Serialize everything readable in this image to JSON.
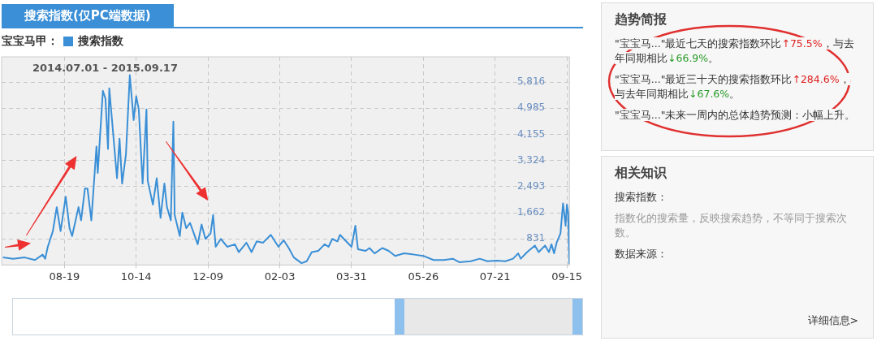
{
  "chart_data": [
    {
      "type": "line",
      "title": "搜索指数(仅PC端数据)",
      "subtitle": "2014.07.01 - 2015.09.17",
      "legend_title": "宝宝马甲：",
      "legend": "top left",
      "grid": true,
      "line_style": "solid",
      "marker": "none",
      "xlim": [
        "2014-07-01",
        "2015-09-17"
      ],
      "xticks": [
        {
          "value": "2014-08-19",
          "label": "08-19"
        },
        {
          "value": "2014-10-14",
          "label": "10-14"
        },
        {
          "value": "2014-12-09",
          "label": "12-09"
        },
        {
          "value": "2015-02-03",
          "label": "02-03"
        },
        {
          "value": "2015-03-31",
          "label": "03-31"
        },
        {
          "value": "2015-05-26",
          "label": "05-26"
        },
        {
          "value": "2015-07-21",
          "label": "07-21"
        },
        {
          "value": "2015-09-15",
          "label": "09-15"
        }
      ],
      "ylim": [
        0,
        6620
      ],
      "yticks": [
        {
          "value": 0,
          "label": null
        },
        {
          "value": 831,
          "label": "831"
        },
        {
          "value": 1662,
          "label": "1,662"
        },
        {
          "value": 2493,
          "label": "2,493"
        },
        {
          "value": 3324,
          "label": "3,324"
        },
        {
          "value": 4155,
          "label": "4,155"
        },
        {
          "value": 4985,
          "label": "4,985"
        },
        {
          "value": 5816,
          "label": "5,816"
        }
      ],
      "series": [
        {
          "name": "搜索指数",
          "color": "#3a8fd6",
          "x": [
            "2014-07-02",
            "2014-07-10",
            "2014-07-19",
            "2014-07-27",
            "2014-08-02",
            "2014-08-04",
            "2014-08-06",
            "2014-08-10",
            "2014-08-13",
            "2014-08-16",
            "2014-08-20",
            "2014-08-23",
            "2014-08-25",
            "2014-08-30",
            "2014-09-01",
            "2014-09-04",
            "2014-09-06",
            "2014-09-09",
            "2014-09-11",
            "2014-09-13",
            "2014-09-14",
            "2014-09-18",
            "2014-09-20",
            "2014-09-22",
            "2014-09-23",
            "2014-09-29",
            "2014-10-01",
            "2014-10-03",
            "2014-10-06",
            "2014-10-09",
            "2014-10-12",
            "2014-10-14",
            "2014-10-16",
            "2014-10-19",
            "2014-10-22",
            "2014-10-23",
            "2014-10-27",
            "2014-10-30",
            "2014-11-02",
            "2014-11-05",
            "2014-11-07",
            "2014-11-10",
            "2014-11-12",
            "2014-11-13",
            "2014-11-17",
            "2014-11-19",
            "2014-11-22",
            "2014-11-25",
            "2014-11-28",
            "2014-12-01",
            "2014-12-04",
            "2014-12-07",
            "2014-12-11",
            "2014-12-13",
            "2014-12-15",
            "2014-12-19",
            "2014-12-24",
            "2014-12-30",
            "2015-01-02",
            "2015-01-08",
            "2015-01-12",
            "2015-01-16",
            "2015-01-21",
            "2015-01-27",
            "2015-02-02",
            "2015-02-06",
            "2015-02-10",
            "2015-02-14",
            "2015-02-20",
            "2015-02-24",
            "2015-02-28",
            "2015-03-05",
            "2015-03-10",
            "2015-03-13",
            "2015-03-16",
            "2015-03-20",
            "2015-03-22",
            "2015-03-25",
            "2015-03-31",
            "2015-04-03",
            "2015-04-05",
            "2015-04-11",
            "2015-04-14",
            "2015-04-18",
            "2015-04-24",
            "2015-04-29",
            "2015-05-04",
            "2015-05-11",
            "2015-05-19",
            "2015-05-26",
            "2015-06-03",
            "2015-06-11",
            "2015-06-18",
            "2015-06-23",
            "2015-07-02",
            "2015-07-09",
            "2015-07-15",
            "2015-07-22",
            "2015-07-29",
            "2015-08-04",
            "2015-08-08",
            "2015-08-10",
            "2015-08-15",
            "2015-08-21",
            "2015-08-24",
            "2015-08-29",
            "2015-09-01",
            "2015-09-03",
            "2015-09-05",
            "2015-09-07",
            "2015-09-10",
            "2015-09-12",
            "2015-09-14",
            "2015-09-15",
            "2015-09-16",
            "2015-09-17"
          ],
          "values": [
            240,
            200,
            240,
            160,
            330,
            200,
            580,
            1080,
            1840,
            1080,
            2170,
            1170,
            920,
            1840,
            1420,
            2430,
            2430,
            1420,
            2590,
            3770,
            2930,
            5540,
            5290,
            3690,
            5620,
            2760,
            4020,
            2590,
            3520,
            6040,
            4610,
            5370,
            4950,
            2590,
            4950,
            2680,
            1920,
            2760,
            1500,
            2590,
            1840,
            1420,
            4560,
            1590,
            920,
            1670,
            1170,
            1340,
            1000,
            660,
            1290,
            830,
            1000,
            1590,
            580,
            830,
            580,
            660,
            410,
            710,
            410,
            750,
            710,
            960,
            580,
            790,
            540,
            240,
            60,
            120,
            410,
            450,
            660,
            580,
            830,
            750,
            960,
            830,
            580,
            1250,
            500,
            450,
            540,
            370,
            540,
            450,
            290,
            370,
            330,
            290,
            160,
            160,
            200,
            90,
            120,
            200,
            120,
            140,
            120,
            200,
            370,
            200,
            410,
            620,
            410,
            620,
            410,
            660,
            370,
            710,
            1000,
            1960,
            1250,
            1920,
            1670,
            30
          ]
        }
      ]
    },
    {
      "type": "other",
      "title": "趋势简报",
      "annotations": [
        "\"宝宝马...\"最近七天的搜索指数环比↑75.5%，与去年同期相比↓66.9%。",
        "\"宝宝马...\"最近三十天的搜索指数环比↑284.6%，与去年同期相比↓67.6%。",
        "\"宝宝马...\"未来一周内的总体趋势预测：小幅上升。"
      ]
    },
    {
      "type": "other",
      "title": "相关知识",
      "annotations": [
        "搜索指数：",
        "指数化的搜索量，反映搜索趋势，不等同于搜索次数。",
        "数据来源：",
        "详细信息>"
      ]
    }
  ]
}
